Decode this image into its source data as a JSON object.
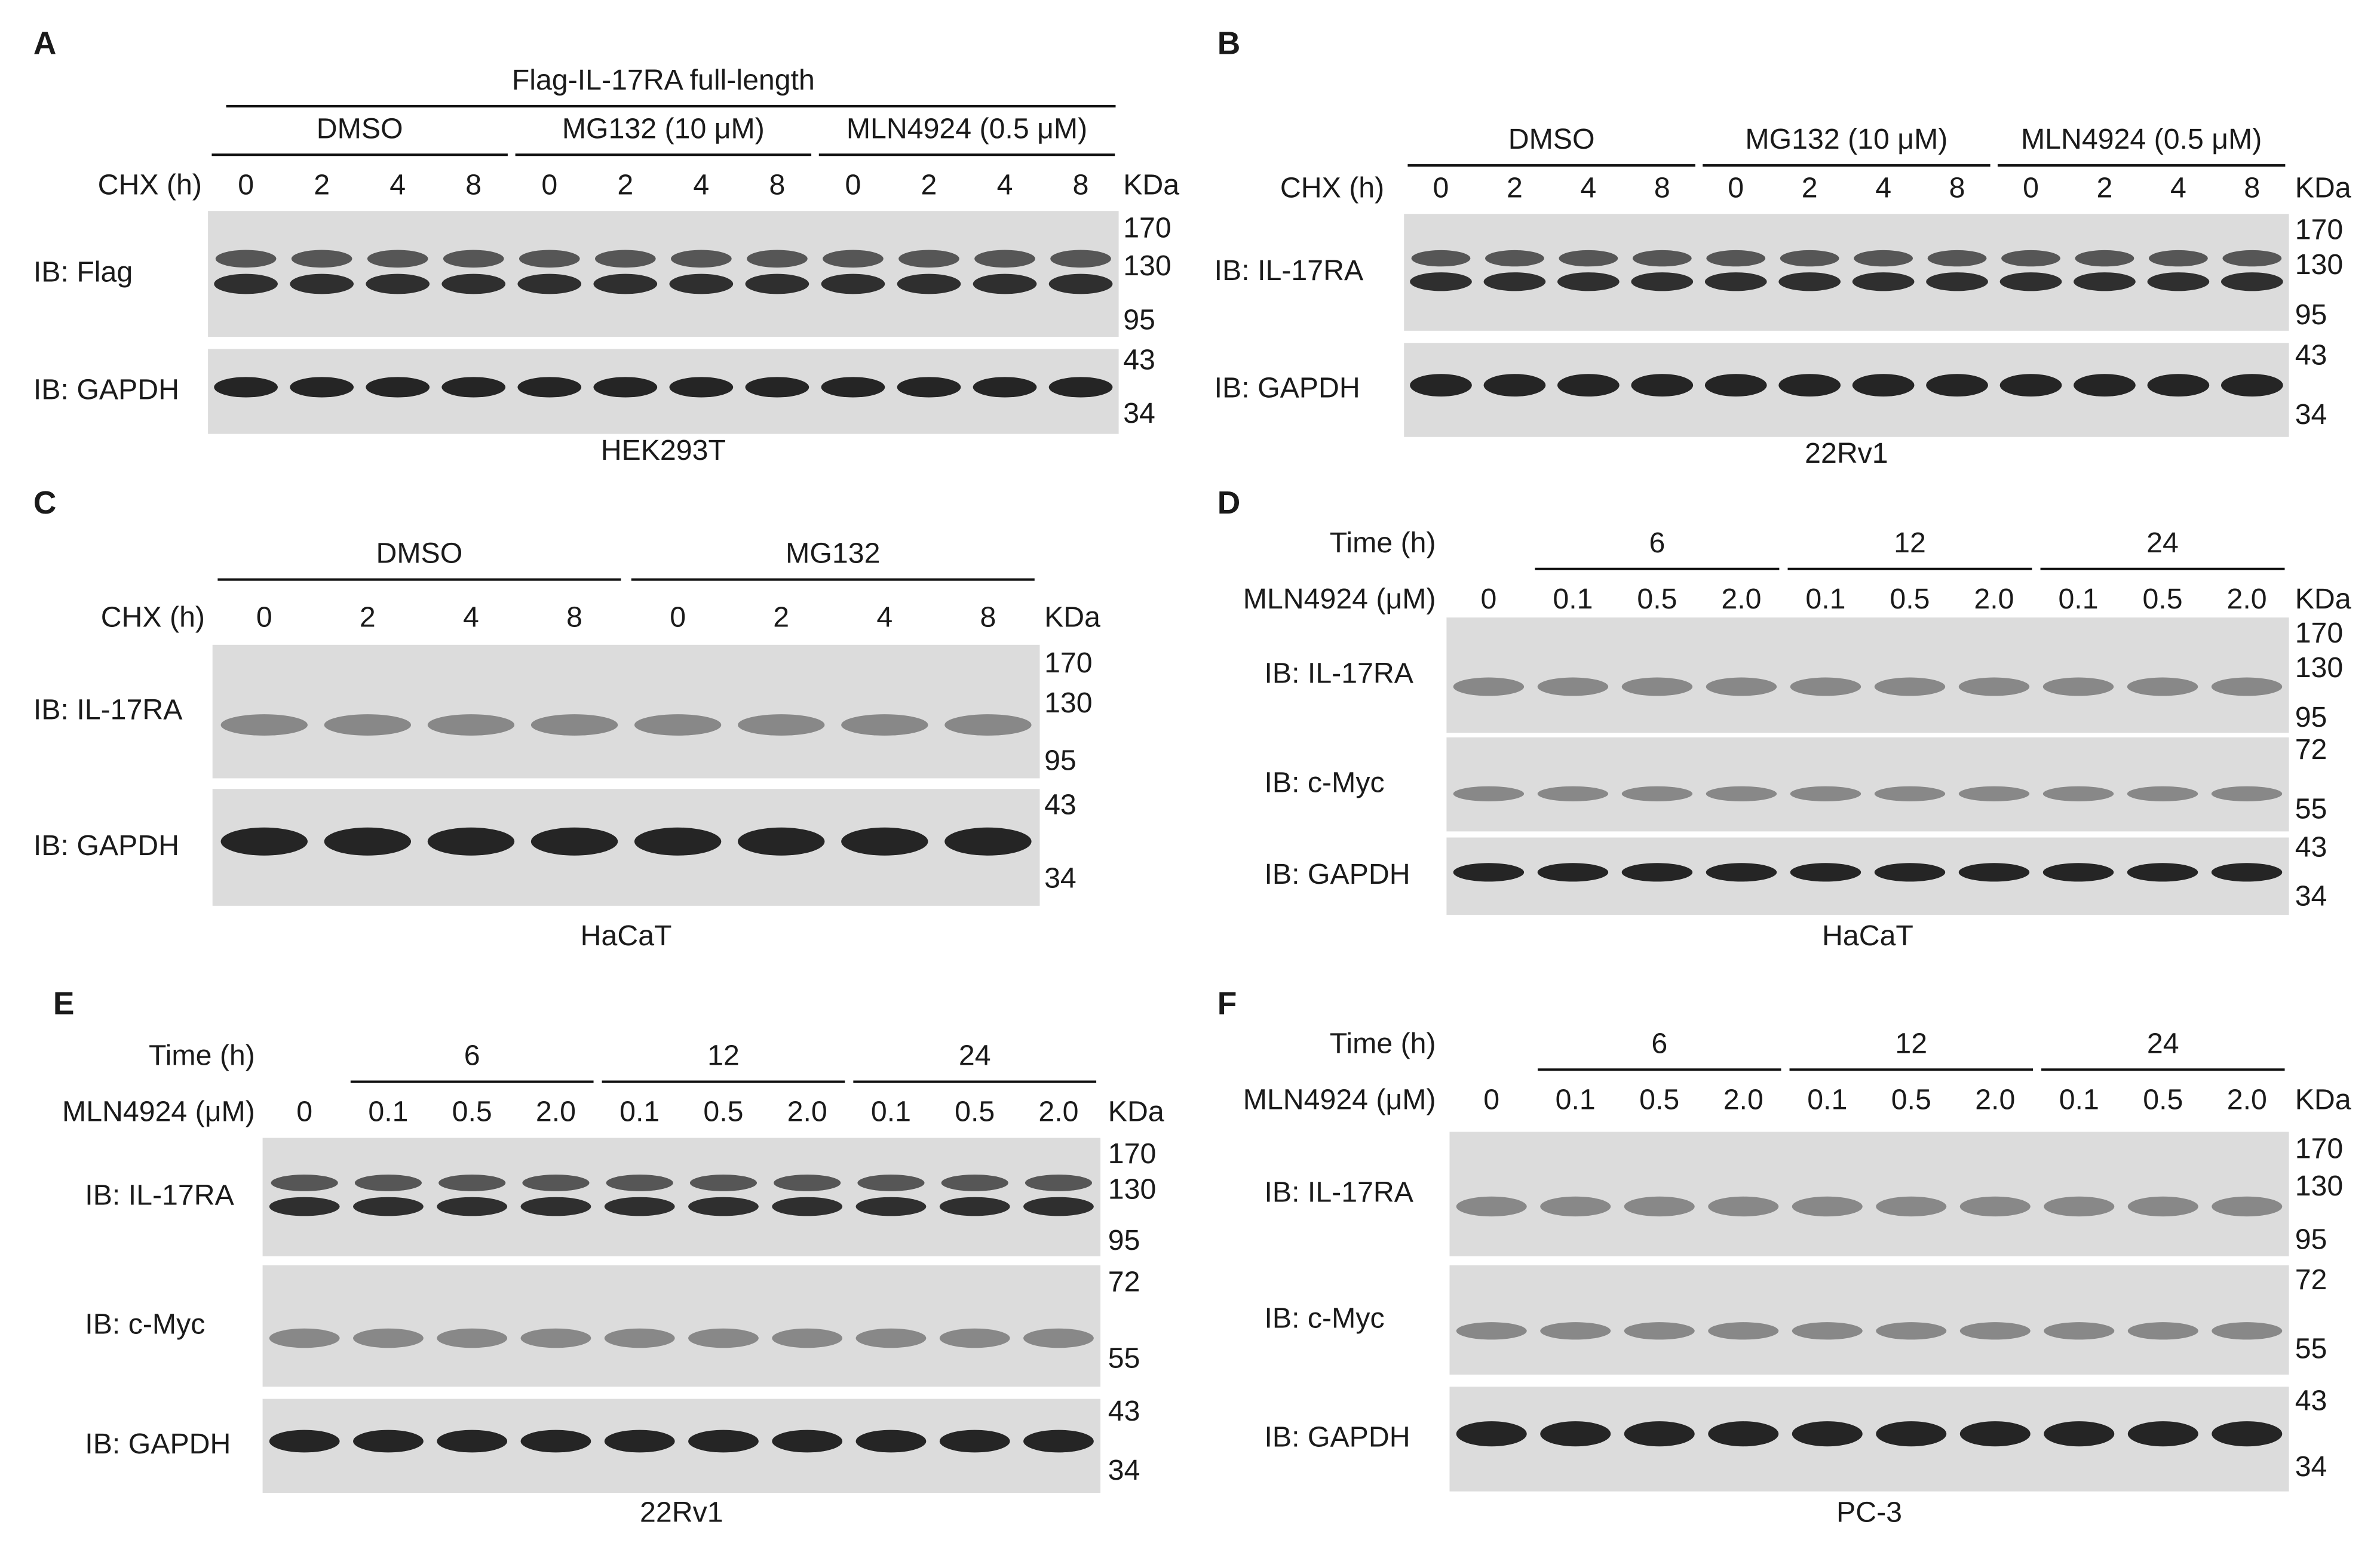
{
  "panels": [
    {
      "letter": "A",
      "header": "Flag-IL-17RA full-length",
      "groups": [
        {
          "label": "DMSO",
          "lanes": [
            "0",
            "2",
            "4",
            "8"
          ]
        },
        {
          "label": "MG132 (10 μM)",
          "lanes": [
            "0",
            "2",
            "4",
            "8"
          ]
        },
        {
          "label": "MLN4924 (0.5 μM)",
          "lanes": [
            "0",
            "2",
            "4",
            "8"
          ]
        }
      ],
      "lane_row_label": "CHX (h)",
      "unit": "KDa",
      "blots": [
        {
          "label": "IB: Flag",
          "markers": [
            "170",
            "130",
            "95"
          ]
        },
        {
          "label": "IB: GAPDH",
          "markers": [
            "43",
            "34"
          ]
        }
      ],
      "cell_line": "HEK293T"
    },
    {
      "letter": "B",
      "groups": [
        {
          "label": "DMSO",
          "lanes": [
            "0",
            "2",
            "4",
            "8"
          ]
        },
        {
          "label": "MG132 (10 μM)",
          "lanes": [
            "0",
            "2",
            "4",
            "8"
          ]
        },
        {
          "label": "MLN4924 (0.5 μM)",
          "lanes": [
            "0",
            "2",
            "4",
            "8"
          ]
        }
      ],
      "lane_row_label": "CHX (h)",
      "unit": "KDa",
      "blots": [
        {
          "label": "IB: IL-17RA",
          "markers": [
            "170",
            "130",
            "95"
          ]
        },
        {
          "label": "IB: GAPDH",
          "markers": [
            "43",
            "34"
          ]
        }
      ],
      "cell_line": "22Rv1"
    },
    {
      "letter": "C",
      "groups": [
        {
          "label": "DMSO",
          "lanes": [
            "0",
            "2",
            "4",
            "8"
          ]
        },
        {
          "label": "MG132",
          "lanes": [
            "0",
            "2",
            "4",
            "8"
          ]
        }
      ],
      "lane_row_label": "CHX (h)",
      "unit": "KDa",
      "blots": [
        {
          "label": "IB: IL-17RA",
          "markers": [
            "170",
            "130",
            "95"
          ]
        },
        {
          "label": "IB: GAPDH",
          "markers": [
            "43",
            "34"
          ]
        }
      ],
      "cell_line": "HaCaT"
    },
    {
      "letter": "D",
      "group_row_label": "Time (h)",
      "groups": [
        {
          "label": null,
          "lanes": [
            "0"
          ]
        },
        {
          "label": "6",
          "lanes": [
            "0.1",
            "0.5",
            "2.0"
          ]
        },
        {
          "label": "12",
          "lanes": [
            "0.1",
            "0.5",
            "2.0"
          ]
        },
        {
          "label": "24",
          "lanes": [
            "0.1",
            "0.5",
            "2.0"
          ]
        }
      ],
      "lane_row_label": "MLN4924 (μM)",
      "unit": "KDa",
      "blots": [
        {
          "label": "IB: IL-17RA",
          "markers": [
            "170",
            "130",
            "95"
          ]
        },
        {
          "label": "IB: c-Myc",
          "markers": [
            "72",
            "55"
          ]
        },
        {
          "label": "IB: GAPDH",
          "markers": [
            "43",
            "34"
          ]
        }
      ],
      "cell_line": "HaCaT"
    },
    {
      "letter": "E",
      "group_row_label": "Time (h)",
      "groups": [
        {
          "label": null,
          "lanes": [
            "0"
          ]
        },
        {
          "label": "6",
          "lanes": [
            "0.1",
            "0.5",
            "2.0"
          ]
        },
        {
          "label": "12",
          "lanes": [
            "0.1",
            "0.5",
            "2.0"
          ]
        },
        {
          "label": "24",
          "lanes": [
            "0.1",
            "0.5",
            "2.0"
          ]
        }
      ],
      "lane_row_label": "MLN4924 (μM)",
      "unit": "KDa",
      "blots": [
        {
          "label": "IB: IL-17RA",
          "markers": [
            "170",
            "130",
            "95"
          ]
        },
        {
          "label": "IB: c-Myc",
          "markers": [
            "72",
            "55"
          ]
        },
        {
          "label": "IB: GAPDH",
          "markers": [
            "43",
            "34"
          ]
        }
      ],
      "cell_line": "22Rv1"
    },
    {
      "letter": "F",
      "group_row_label": "Time (h)",
      "groups": [
        {
          "label": null,
          "lanes": [
            "0"
          ]
        },
        {
          "label": "6",
          "lanes": [
            "0.1",
            "0.5",
            "2.0"
          ]
        },
        {
          "label": "12",
          "lanes": [
            "0.1",
            "0.5",
            "2.0"
          ]
        },
        {
          "label": "24",
          "lanes": [
            "0.1",
            "0.5",
            "2.0"
          ]
        }
      ],
      "lane_row_label": "MLN4924 (μM)",
      "unit": "KDa",
      "blots": [
        {
          "label": "IB: IL-17RA",
          "markers": [
            "170",
            "130",
            "95"
          ]
        },
        {
          "label": "IB: c-Myc",
          "markers": [
            "72",
            "55"
          ]
        },
        {
          "label": "IB: GAPDH",
          "markers": [
            "43",
            "34"
          ]
        }
      ],
      "cell_line": "PC-3"
    }
  ]
}
